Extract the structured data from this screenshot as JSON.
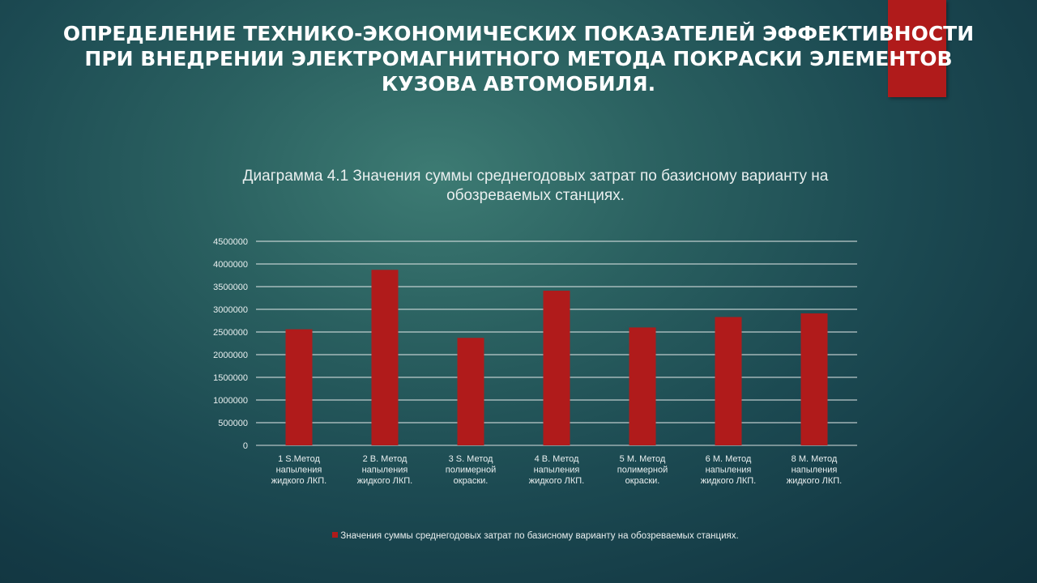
{
  "slide": {
    "title": "ОПРЕДЕЛЕНИЕ ТЕХНИКО-ЭКОНОМИЧЕСКИХ ПОКАЗАТЕЛЕЙ ЭФФЕКТИВНОСТИ ПРИ ВНЕДРЕНИИ ЭЛЕКТРОМАГНИТНОГО МЕТОДА ПОКРАСКИ ЭЛЕМЕНТОВ КУЗОВА АВТОМОБИЛЯ.",
    "accent_color": "#b01b1b"
  },
  "chart_data": {
    "type": "bar",
    "title": "Диаграмма 4.1 Значения суммы среднегодовых затрат по базисному варианту на обозреваемых станциях.",
    "xlabel": "",
    "ylabel": "",
    "categories": [
      [
        "1 S.Метод",
        "напыления",
        "жидкого ЛКП."
      ],
      [
        "2 В. Метод",
        "напыления",
        "жидкого ЛКП."
      ],
      [
        "3 S. Метод",
        "полимерной",
        "окраски."
      ],
      [
        "4 В. Метод",
        "напыления",
        "жидкого ЛКП."
      ],
      [
        "5 М. Метод",
        "полимерной",
        "окраски."
      ],
      [
        "6 М. Метод",
        "напыления",
        "жидкого ЛКП."
      ],
      [
        "8 М. Метод",
        "напыления",
        "жидкого ЛКП."
      ]
    ],
    "series": [
      {
        "name": "Значения суммы среднегодовых затрат по базисному варианту на обозреваемых станциях.",
        "color": "#b01b1b",
        "values": [
          2560000,
          3870000,
          2370000,
          3410000,
          2600000,
          2830000,
          2910000
        ]
      }
    ],
    "ylim": [
      0,
      4500000
    ],
    "yticks": [
      "0",
      "500000",
      "1000000",
      "1500000",
      "2000000",
      "2500000",
      "3000000",
      "3500000",
      "4000000",
      "4500000"
    ],
    "grid": true,
    "legend_position": "bottom"
  }
}
